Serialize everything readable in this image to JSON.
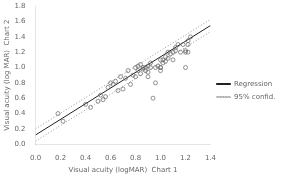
{
  "chart_data": {
    "type": "scatter",
    "xlabel": "Visual acuity (logMAR)  Chart 1",
    "ylabel": "Visual acuity (log MAR)  Chart 2",
    "xlim": [
      0.0,
      1.4
    ],
    "ylim": [
      0.0,
      1.8
    ],
    "xticks": [
      {
        "value": 0.0,
        "label": "0.0"
      },
      0.2,
      0.4,
      0.6,
      0.8,
      {
        "value": 1.0,
        "label": "1.0"
      },
      1.2,
      1.4
    ],
    "yticks": [
      {
        "value": 0.0,
        "label": "0.0"
      },
      0.2,
      0.4,
      0.6,
      0.8,
      {
        "value": 1.0,
        "label": "1.0"
      },
      1.2,
      1.4,
      1.6,
      1.8
    ],
    "grid": false,
    "legend": "right",
    "series": [
      {
        "type": "scatter",
        "marker": "open_circle",
        "color": "#666666",
        "x": [
          0.18,
          0.22,
          0.4,
          0.44,
          0.5,
          0.52,
          0.54,
          0.56,
          0.58,
          0.6,
          0.62,
          0.64,
          0.66,
          0.68,
          0.7,
          0.72,
          0.74,
          0.76,
          0.78,
          0.8,
          0.8,
          0.82,
          0.82,
          0.84,
          0.84,
          0.86,
          0.86,
          0.88,
          0.88,
          0.9,
          0.9,
          0.9,
          0.92,
          0.92,
          0.94,
          0.96,
          0.96,
          0.98,
          1.0,
          1.0,
          1.0,
          1.0,
          1.02,
          1.02,
          1.04,
          1.04,
          1.06,
          1.06,
          1.08,
          1.1,
          1.1,
          1.12,
          1.12,
          1.14,
          1.16,
          1.18,
          1.2,
          1.2,
          1.2,
          1.22,
          1.22,
          1.22,
          1.24
        ],
        "values": [
          0.4,
          0.3,
          0.52,
          0.48,
          0.56,
          0.64,
          0.58,
          0.62,
          0.74,
          0.8,
          0.78,
          0.82,
          0.7,
          0.88,
          0.72,
          0.86,
          0.96,
          0.78,
          0.9,
          1.0,
          0.88,
          0.96,
          1.02,
          0.92,
          1.04,
          1.0,
          0.98,
          0.96,
          1.0,
          0.94,
          1.02,
          0.88,
          1.0,
          1.06,
          0.6,
          1.0,
          0.8,
          1.02,
          1.0,
          1.1,
          0.96,
          1.0,
          1.06,
          1.1,
          1.08,
          1.14,
          1.12,
          1.2,
          1.18,
          1.1,
          1.2,
          1.22,
          1.26,
          1.3,
          1.2,
          1.3,
          1.2,
          1.22,
          1.0,
          1.3,
          1.2,
          1.35,
          1.4
        ]
      },
      {
        "name": "Regression",
        "type": "line",
        "line_style": "solid",
        "color": "#222222",
        "x": [
          0.0,
          1.4
        ],
        "values": [
          0.12,
          1.548
        ]
      },
      {
        "name": "95% confid.",
        "type": "line",
        "line_style": "dotted",
        "color": "#999999",
        "x": [
          0.0,
          1.4
        ],
        "values": [
          0.2,
          1.628
        ]
      },
      {
        "name": "95% confid.",
        "type": "line",
        "line_style": "dotted",
        "color": "#999999",
        "x": [
          0.0,
          1.4
        ],
        "values": [
          0.04,
          1.468
        ]
      }
    ]
  }
}
